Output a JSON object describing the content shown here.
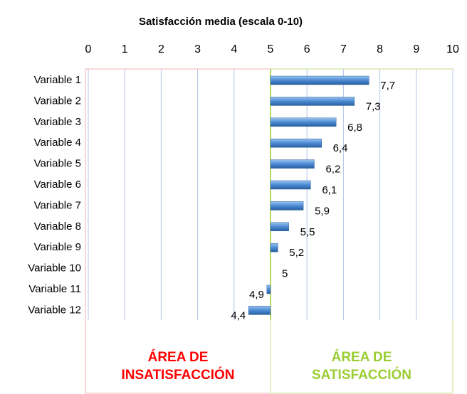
{
  "chart_data": {
    "type": "hbar",
    "title": "Satisfacción media (escala 0-10)",
    "categories": [
      "Variable 1",
      "Variable 2",
      "Variable 3",
      "Variable 4",
      "Variable 5",
      "Variable 6",
      "Variable 7",
      "Variable 8",
      "Variable 9",
      "Variable 10",
      "Variable 11",
      "Variable 12"
    ],
    "values": [
      7.7,
      7.3,
      6.8,
      6.4,
      6.2,
      6.1,
      5.9,
      5.5,
      5.2,
      5,
      4.9,
      4.4
    ],
    "value_labels": [
      "7,7",
      "7,3",
      "6,8",
      "6,4",
      "6,2",
      "6,1",
      "5,9",
      "5,5",
      "5,2",
      "5",
      "4,9",
      "4,4"
    ],
    "color": "#4a8ad4",
    "base": 5,
    "xlim": [
      0,
      10
    ],
    "xticks": [
      0,
      1,
      2,
      3,
      4,
      5,
      6,
      7,
      8,
      9,
      10
    ],
    "grid": true,
    "annotations": [
      {
        "lines": [
          "ÁREA DE",
          "INSATISFACCIÓN"
        ],
        "color": "#ff0000"
      },
      {
        "lines": [
          "ÁREA DE",
          "SATISFACCIÓN"
        ],
        "color": "#9acd32"
      }
    ]
  }
}
